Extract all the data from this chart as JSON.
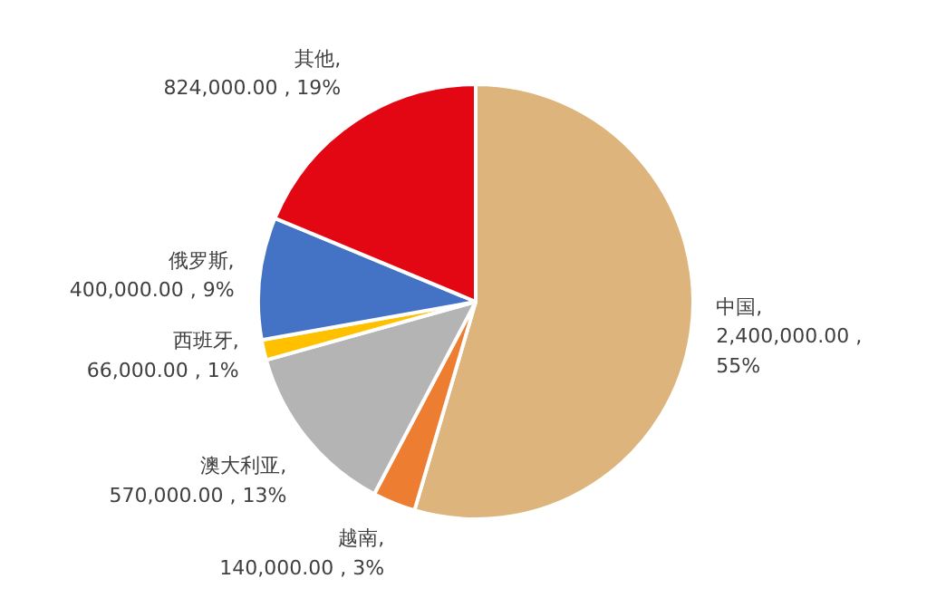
{
  "chart_data": {
    "type": "pie",
    "categories": [
      "中国",
      "越南",
      "澳大利亚",
      "西班牙",
      "俄罗斯",
      "其他"
    ],
    "values": [
      2400000,
      140000,
      570000,
      66000,
      400000,
      824000
    ],
    "colors": [
      "#dcb47c",
      "#ed7d31",
      "#b4b4b4",
      "#ffc000",
      "#4472c4",
      "#e30613"
    ],
    "value_labels": [
      ",\n2,400,000.00 ,\n55%",
      ",\n140,000.00 , 3%",
      ",\n570,000.00 , 13%",
      ",\n66,000.00 , 1%",
      ",\n400,000.00 , 9%",
      ",\n824,000.00 , 19%"
    ]
  }
}
